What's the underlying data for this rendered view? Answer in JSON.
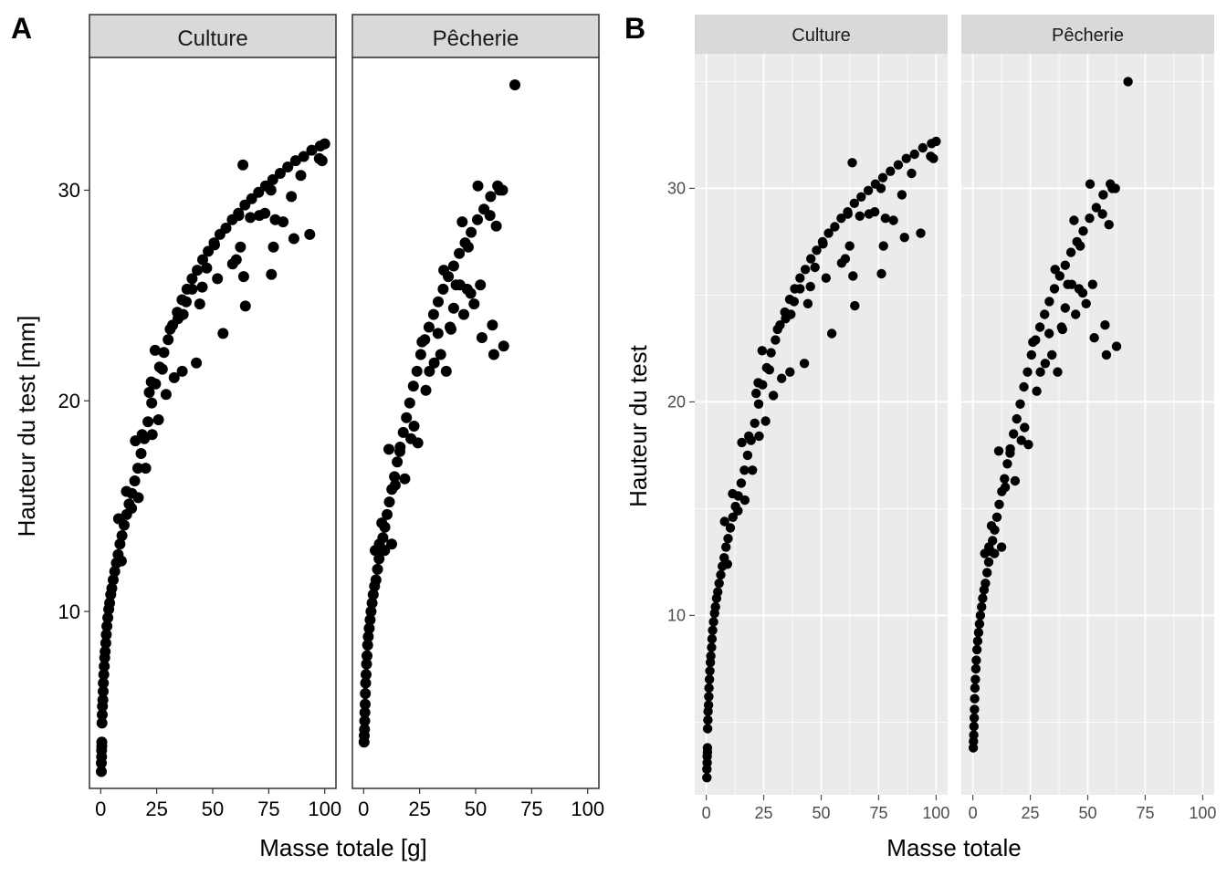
{
  "panels": [
    {
      "tag": "A",
      "theme": "bw",
      "ylabel": "Hauteur du test  [mm]",
      "xlabel": "Masse totale  [g]"
    },
    {
      "tag": "B",
      "theme": "grey",
      "ylabel": "Hauteur du test",
      "xlabel": "Masse totale"
    }
  ],
  "colors": {
    "point": "#000000",
    "strip_bw": "#d9d9d9",
    "strip_grey": "#d9d9d9",
    "panel_grey": "#ebebeb",
    "grid_major": "#ffffff",
    "axis_text": "#4d4d4d"
  },
  "chart_data": {
    "type": "scatter",
    "facets": [
      "Culture",
      "Pêcherie"
    ],
    "x_ticks": [
      0,
      25,
      50,
      75,
      100
    ],
    "y_ticks": [
      10,
      20,
      30
    ],
    "xlim": [
      -5,
      105
    ],
    "ylim": [
      1.6,
      36.3
    ],
    "grid": "B only",
    "series": [
      {
        "facet": "Culture",
        "points": [
          [
            0.3,
            2.4
          ],
          [
            0.3,
            2.8
          ],
          [
            0.4,
            3.1
          ],
          [
            0.4,
            3.4
          ],
          [
            0.5,
            3.6
          ],
          [
            0.5,
            3.8
          ],
          [
            0.6,
            4.7
          ],
          [
            0.7,
            5.1
          ],
          [
            0.8,
            5.5
          ],
          [
            1.0,
            5.8
          ],
          [
            1.1,
            6.2
          ],
          [
            1.2,
            6.6
          ],
          [
            1.4,
            7.0
          ],
          [
            1.6,
            7.4
          ],
          [
            1.8,
            7.8
          ],
          [
            2.0,
            8.1
          ],
          [
            2.3,
            8.5
          ],
          [
            2.5,
            8.9
          ],
          [
            2.8,
            9.3
          ],
          [
            3.2,
            9.7
          ],
          [
            3.6,
            10.1
          ],
          [
            4.0,
            10.4
          ],
          [
            4.5,
            10.8
          ],
          [
            5.0,
            11.1
          ],
          [
            5.6,
            11.5
          ],
          [
            6.3,
            11.9
          ],
          [
            7.0,
            12.3
          ],
          [
            7.8,
            12.7
          ],
          [
            8.6,
            13.2
          ],
          [
            9.5,
            13.6
          ],
          [
            10.5,
            14.1
          ],
          [
            11.6,
            14.6
          ],
          [
            12.7,
            15.1
          ],
          [
            13.9,
            15.6
          ],
          [
            15.2,
            16.2
          ],
          [
            16.6,
            16.8
          ],
          [
            18.0,
            17.5
          ],
          [
            19.5,
            18.2
          ],
          [
            21.1,
            19.0
          ],
          [
            22.8,
            19.9
          ],
          [
            24.5,
            20.8
          ],
          [
            26.3,
            21.6
          ],
          [
            28.2,
            22.3
          ],
          [
            30.1,
            22.9
          ],
          [
            32.1,
            23.6
          ],
          [
            34.2,
            24.2
          ],
          [
            36.3,
            24.8
          ],
          [
            38.5,
            25.3
          ],
          [
            40.8,
            25.8
          ],
          [
            43.1,
            26.2
          ],
          [
            45.5,
            26.7
          ],
          [
            48.0,
            27.1
          ],
          [
            50.6,
            27.5
          ],
          [
            53.2,
            27.9
          ],
          [
            55.9,
            28.2
          ],
          [
            58.7,
            28.6
          ],
          [
            61.5,
            28.9
          ],
          [
            64.4,
            29.3
          ],
          [
            67.4,
            29.6
          ],
          [
            70.5,
            29.9
          ],
          [
            73.6,
            30.2
          ],
          [
            76.8,
            30.5
          ],
          [
            80.1,
            30.8
          ],
          [
            83.5,
            31.1
          ],
          [
            87.0,
            31.4
          ],
          [
            90.6,
            31.6
          ],
          [
            94.2,
            31.9
          ],
          [
            98.0,
            32.1
          ],
          [
            100.0,
            32.2
          ],
          [
            8.0,
            14.4
          ],
          [
            9.2,
            12.4
          ],
          [
            11.5,
            15.7
          ],
          [
            13.8,
            14.9
          ],
          [
            15.5,
            18.1
          ],
          [
            16.8,
            15.4
          ],
          [
            18.5,
            18.4
          ],
          [
            20.1,
            16.8
          ],
          [
            21.7,
            20.4
          ],
          [
            23.0,
            18.4
          ],
          [
            24.3,
            22.4
          ],
          [
            25.8,
            19.1
          ],
          [
            27.5,
            21.5
          ],
          [
            29.2,
            20.3
          ],
          [
            31.0,
            23.4
          ],
          [
            32.8,
            21.1
          ],
          [
            34.5,
            23.9
          ],
          [
            36.4,
            21.4
          ],
          [
            38.2,
            24.7
          ],
          [
            42.7,
            21.8
          ],
          [
            44.2,
            24.6
          ],
          [
            47.3,
            26.3
          ],
          [
            52.1,
            25.8
          ],
          [
            54.6,
            23.2
          ],
          [
            60.5,
            26.7
          ],
          [
            62.4,
            27.3
          ],
          [
            63.8,
            25.9
          ],
          [
            64.6,
            24.5
          ],
          [
            66.8,
            28.7
          ],
          [
            73.3,
            28.9
          ],
          [
            76.2,
            26.0
          ],
          [
            77.1,
            27.3
          ],
          [
            81.4,
            28.5
          ],
          [
            85.1,
            29.7
          ],
          [
            86.2,
            27.7
          ],
          [
            89.3,
            30.7
          ],
          [
            93.3,
            27.9
          ],
          [
            97.6,
            31.5
          ],
          [
            98.8,
            31.4
          ],
          [
            63.5,
            31.2
          ],
          [
            76.0,
            30.0
          ],
          [
            61.6,
            28.8
          ],
          [
            70.8,
            28.8
          ],
          [
            77.9,
            28.6
          ],
          [
            58.9,
            26.5
          ],
          [
            50.8,
            27.4
          ],
          [
            45.3,
            25.4
          ],
          [
            40.8,
            25.3
          ],
          [
            36.8,
            24.1
          ],
          [
            22.6,
            20.9
          ]
        ]
      },
      {
        "facet": "Pêcherie",
        "points": [
          [
            0.2,
            3.8
          ],
          [
            0.3,
            4.1
          ],
          [
            0.4,
            4.4
          ],
          [
            0.5,
            4.8
          ],
          [
            0.6,
            5.2
          ],
          [
            0.7,
            5.6
          ],
          [
            0.8,
            6.1
          ],
          [
            0.9,
            6.6
          ],
          [
            1.1,
            7.0
          ],
          [
            1.3,
            7.5
          ],
          [
            1.5,
            7.9
          ],
          [
            1.8,
            8.4
          ],
          [
            2.1,
            8.8
          ],
          [
            2.5,
            9.2
          ],
          [
            2.9,
            9.6
          ],
          [
            3.3,
            10.0
          ],
          [
            3.8,
            10.4
          ],
          [
            4.3,
            10.8
          ],
          [
            4.9,
            11.2
          ],
          [
            5.5,
            11.5
          ],
          [
            6.2,
            12.0
          ],
          [
            6.9,
            12.5
          ],
          [
            7.7,
            13.0
          ],
          [
            8.6,
            13.5
          ],
          [
            9.5,
            14.0
          ],
          [
            10.5,
            14.6
          ],
          [
            11.5,
            15.2
          ],
          [
            12.6,
            15.8
          ],
          [
            13.8,
            16.4
          ],
          [
            15.0,
            17.1
          ],
          [
            16.3,
            17.8
          ],
          [
            17.7,
            18.5
          ],
          [
            19.1,
            19.2
          ],
          [
            20.6,
            19.9
          ],
          [
            22.2,
            20.7
          ],
          [
            23.8,
            21.4
          ],
          [
            25.5,
            22.2
          ],
          [
            27.3,
            22.9
          ],
          [
            29.2,
            23.5
          ],
          [
            31.2,
            24.1
          ],
          [
            33.3,
            24.7
          ],
          [
            35.5,
            25.3
          ],
          [
            37.8,
            25.9
          ],
          [
            40.2,
            26.4
          ],
          [
            42.7,
            27.0
          ],
          [
            45.3,
            27.5
          ],
          [
            48.0,
            28.0
          ],
          [
            50.8,
            28.6
          ],
          [
            53.7,
            29.1
          ],
          [
            56.7,
            29.7
          ],
          [
            59.8,
            30.2
          ],
          [
            62.0,
            30.0
          ],
          [
            67.5,
            35.0
          ],
          [
            5.2,
            12.9
          ],
          [
            7.0,
            13.2
          ],
          [
            8.1,
            14.2
          ],
          [
            9.4,
            12.9
          ],
          [
            11.3,
            17.7
          ],
          [
            12.5,
            13.2
          ],
          [
            14.1,
            16.0
          ],
          [
            16.2,
            17.6
          ],
          [
            18.4,
            16.3
          ],
          [
            21.1,
            18.2
          ],
          [
            22.5,
            18.8
          ],
          [
            24.2,
            18.0
          ],
          [
            26.1,
            22.8
          ],
          [
            27.8,
            20.5
          ],
          [
            29.4,
            21.4
          ],
          [
            31.5,
            21.8
          ],
          [
            33.2,
            23.2
          ],
          [
            34.4,
            22.2
          ],
          [
            35.8,
            26.2
          ],
          [
            36.9,
            21.4
          ],
          [
            38.6,
            23.5
          ],
          [
            40.2,
            24.4
          ],
          [
            41.3,
            25.5
          ],
          [
            44.0,
            28.5
          ],
          [
            44.7,
            24.1
          ],
          [
            46.2,
            25.3
          ],
          [
            47.8,
            25.1
          ],
          [
            49.3,
            24.6
          ],
          [
            52.1,
            25.5
          ],
          [
            52.8,
            23.0
          ],
          [
            56.4,
            28.8
          ],
          [
            57.5,
            23.6
          ],
          [
            58.1,
            22.2
          ],
          [
            59.2,
            28.3
          ],
          [
            62.5,
            22.6
          ],
          [
            60.7,
            30.0
          ],
          [
            51.0,
            30.2
          ],
          [
            46.7,
            27.3
          ],
          [
            43.0,
            25.5
          ],
          [
            39.0,
            23.4
          ]
        ]
      }
    ]
  }
}
